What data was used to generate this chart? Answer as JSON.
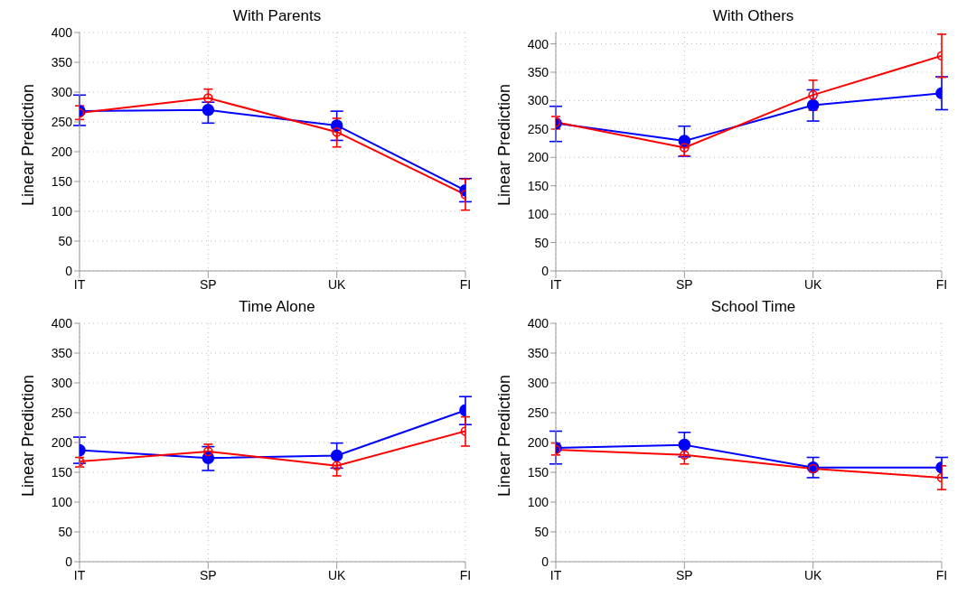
{
  "chart_data": [
    {
      "type": "line",
      "title": "With Parents",
      "ylabel": "Linear Prediction",
      "categories": [
        "IT",
        "SP",
        "UK",
        "FI"
      ],
      "ylim": [
        0,
        400
      ],
      "yticks": [
        0,
        50,
        100,
        150,
        200,
        250,
        300,
        350,
        400
      ],
      "grid": true,
      "legend": false,
      "marker": "circle",
      "series": [
        {
          "color": "#0000ff",
          "values": [
            268,
            270,
            244,
            135
          ],
          "errors": [
            [
              244,
              295
            ],
            [
              248,
              283
            ],
            [
              219,
              268
            ],
            [
              116,
              155
            ]
          ]
        },
        {
          "color": "#ff0000",
          "values": [
            265,
            290,
            233,
            128
          ],
          "errors": [
            [
              254,
              277
            ],
            [
              290,
              305
            ],
            [
              208,
              256
            ],
            [
              102,
              154
            ]
          ]
        }
      ]
    },
    {
      "type": "line",
      "title": "With Others",
      "ylabel": "Linear Prediction",
      "categories": [
        "IT",
        "SP",
        "UK",
        "FI"
      ],
      "ylim": [
        0,
        420
      ],
      "yticks": [
        0,
        50,
        100,
        150,
        200,
        250,
        300,
        350,
        400
      ],
      "grid": true,
      "legend": false,
      "marker": "circle",
      "series": [
        {
          "color": "#0000ff",
          "values": [
            260,
            229,
            292,
            313
          ],
          "errors": [
            [
              228,
              290
            ],
            [
              202,
              255
            ],
            [
              264,
              319
            ],
            [
              284,
              342
            ]
          ]
        },
        {
          "color": "#ff0000",
          "values": [
            262,
            217,
            310,
            379
          ],
          "errors": [
            [
              250,
              272
            ],
            [
              203,
              217
            ],
            [
              283,
              336
            ],
            [
              341,
              417
            ]
          ]
        }
      ]
    },
    {
      "type": "line",
      "title": "Time Alone",
      "ylabel": "Linear Prediction",
      "categories": [
        "IT",
        "SP",
        "UK",
        "FI"
      ],
      "ylim": [
        0,
        400
      ],
      "yticks": [
        0,
        50,
        100,
        150,
        200,
        250,
        300,
        350,
        400
      ],
      "grid": true,
      "legend": false,
      "marker": "circle",
      "series": [
        {
          "color": "#0000ff",
          "values": [
            187,
            174,
            178,
            254
          ],
          "errors": [
            [
              165,
              209
            ],
            [
              153,
              193
            ],
            [
              157,
              199
            ],
            [
              230,
              277
            ]
          ]
        },
        {
          "color": "#ff0000",
          "values": [
            168,
            185,
            161,
            219
          ],
          "errors": [
            [
              159,
              175
            ],
            [
              185,
              197
            ],
            [
              144,
              172
            ],
            [
              194,
              243
            ]
          ]
        }
      ]
    },
    {
      "type": "line",
      "title": "School Time",
      "ylabel": "Linear Prediction",
      "categories": [
        "IT",
        "SP",
        "UK",
        "FI"
      ],
      "ylim": [
        0,
        400
      ],
      "yticks": [
        0,
        50,
        100,
        150,
        200,
        250,
        300,
        350,
        400
      ],
      "grid": true,
      "legend": false,
      "marker": "circle",
      "series": [
        {
          "color": "#0000ff",
          "values": [
            191,
            196,
            158,
            158
          ],
          "errors": [
            [
              164,
              219
            ],
            [
              176,
              217
            ],
            [
              141,
              175
            ],
            [
              141,
              175
            ]
          ]
        },
        {
          "color": "#ff0000",
          "values": [
            188,
            179,
            156,
            141
          ],
          "errors": [
            [
              179,
              199
            ],
            [
              164,
              191
            ],
            null,
            [
              121,
              161
            ]
          ]
        }
      ]
    }
  ]
}
